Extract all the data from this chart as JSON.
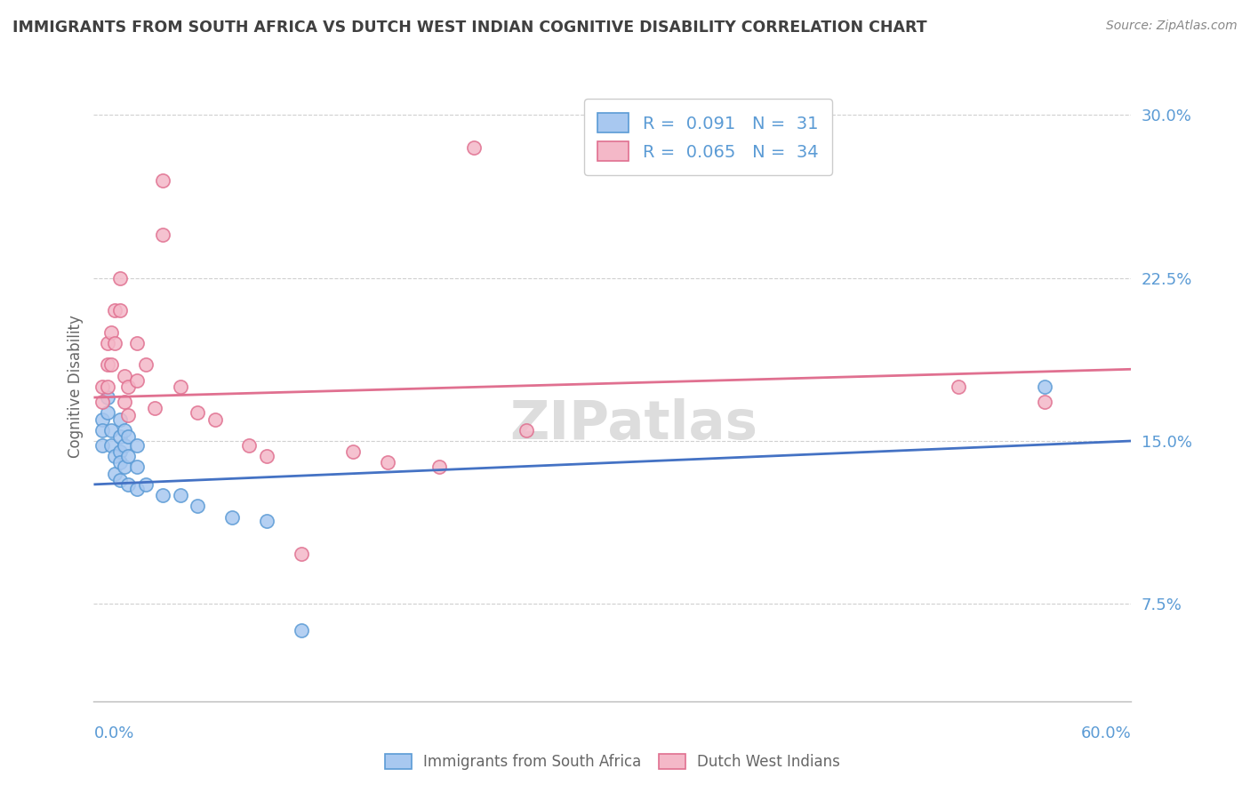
{
  "title": "IMMIGRANTS FROM SOUTH AFRICA VS DUTCH WEST INDIAN COGNITIVE DISABILITY CORRELATION CHART",
  "source_text": "Source: ZipAtlas.com",
  "ylabel": "Cognitive Disability",
  "xmin": 0.0,
  "xmax": 0.6,
  "ymin": 0.03,
  "ymax": 0.32,
  "blue_scatter_x": [
    0.005,
    0.005,
    0.005,
    0.008,
    0.008,
    0.01,
    0.01,
    0.012,
    0.012,
    0.015,
    0.015,
    0.015,
    0.015,
    0.015,
    0.018,
    0.018,
    0.018,
    0.02,
    0.02,
    0.02,
    0.025,
    0.025,
    0.025,
    0.03,
    0.04,
    0.05,
    0.06,
    0.08,
    0.1,
    0.12,
    0.55
  ],
  "blue_scatter_y": [
    0.16,
    0.155,
    0.148,
    0.17,
    0.163,
    0.155,
    0.148,
    0.143,
    0.135,
    0.16,
    0.152,
    0.145,
    0.14,
    0.132,
    0.155,
    0.148,
    0.138,
    0.152,
    0.143,
    0.13,
    0.148,
    0.138,
    0.128,
    0.13,
    0.125,
    0.125,
    0.12,
    0.115,
    0.113,
    0.063,
    0.175
  ],
  "pink_scatter_x": [
    0.005,
    0.005,
    0.008,
    0.008,
    0.008,
    0.01,
    0.01,
    0.012,
    0.012,
    0.015,
    0.015,
    0.018,
    0.018,
    0.02,
    0.02,
    0.025,
    0.025,
    0.03,
    0.035,
    0.04,
    0.04,
    0.05,
    0.06,
    0.07,
    0.09,
    0.1,
    0.12,
    0.15,
    0.17,
    0.2,
    0.22,
    0.25,
    0.5,
    0.55
  ],
  "pink_scatter_y": [
    0.175,
    0.168,
    0.195,
    0.185,
    0.175,
    0.2,
    0.185,
    0.21,
    0.195,
    0.225,
    0.21,
    0.18,
    0.168,
    0.175,
    0.162,
    0.195,
    0.178,
    0.185,
    0.165,
    0.27,
    0.245,
    0.175,
    0.163,
    0.16,
    0.148,
    0.143,
    0.098,
    0.145,
    0.14,
    0.138,
    0.285,
    0.155,
    0.175,
    0.168
  ],
  "blue_line_x_start": 0.0,
  "blue_line_x_end": 0.6,
  "blue_line_y_start": 0.13,
  "blue_line_y_end": 0.15,
  "pink_line_x_start": 0.0,
  "pink_line_x_end": 0.6,
  "pink_line_y_start": 0.17,
  "pink_line_y_end": 0.183,
  "blue_fill_color": "#A8C8F0",
  "blue_edge_color": "#5B9BD5",
  "pink_fill_color": "#F4B8C8",
  "pink_edge_color": "#E07090",
  "blue_line_color": "#4472C4",
  "pink_line_color": "#E07090",
  "grid_color": "#D0D0D0",
  "axis_color": "#5B9BD5",
  "title_color": "#404040",
  "watermark_color": "#DDDDDD",
  "legend_text_color": "#5B9BD5",
  "bottom_legend_color": "#666666",
  "ytick_values": [
    0.075,
    0.15,
    0.225,
    0.3
  ],
  "ytick_labels": [
    "7.5%",
    "15.0%",
    "22.5%",
    "30.0%"
  ],
  "scatter_size": 120
}
